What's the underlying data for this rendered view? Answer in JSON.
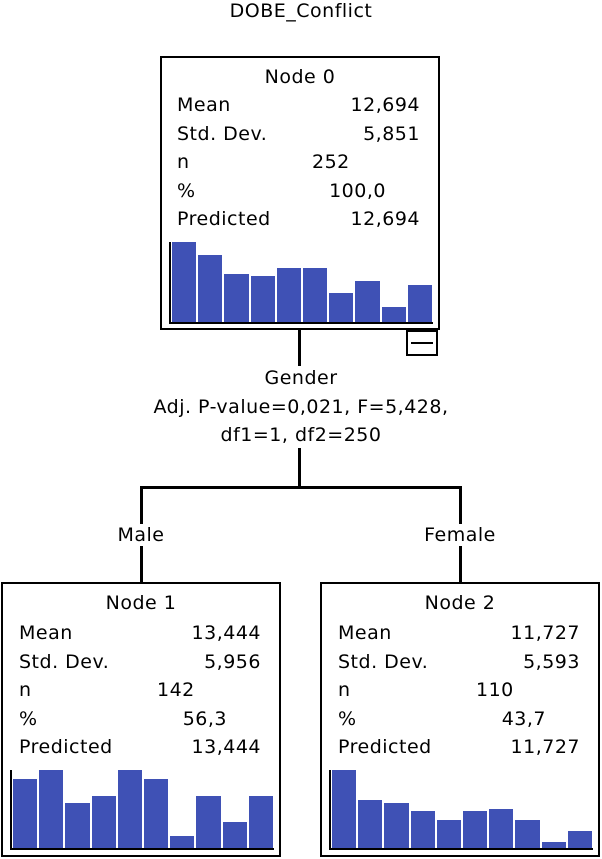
{
  "title": "DOBE_Conflict",
  "colors": {
    "bar": "#3f51b5",
    "line": "#000000"
  },
  "nodes": [
    {
      "title": "Node 0",
      "stats": [
        {
          "label": "Mean",
          "value": "12,694"
        },
        {
          "label": "Std. Dev.",
          "value": "5,851"
        },
        {
          "label": "n",
          "value": "252"
        },
        {
          "label": "%",
          "value": "100,0"
        },
        {
          "label": "Predicted",
          "value": "12,694"
        }
      ],
      "histogram": [
        1.0,
        0.84,
        0.6,
        0.57,
        0.68,
        0.68,
        0.36,
        0.51,
        0.19,
        0.46
      ]
    },
    {
      "title": "Node 1",
      "stats": [
        {
          "label": "Mean",
          "value": "13,444"
        },
        {
          "label": "Std. Dev.",
          "value": "5,956"
        },
        {
          "label": "n",
          "value": "142"
        },
        {
          "label": "%",
          "value": "56,3"
        },
        {
          "label": "Predicted",
          "value": "13,444"
        }
      ],
      "histogram": [
        0.88,
        1.0,
        0.58,
        0.67,
        1.0,
        0.88,
        0.15,
        0.67,
        0.33,
        0.67
      ]
    },
    {
      "title": "Node 2",
      "stats": [
        {
          "label": "Mean",
          "value": "11,727"
        },
        {
          "label": "Std. Dev.",
          "value": "5,593"
        },
        {
          "label": "n",
          "value": "110"
        },
        {
          "label": "%",
          "value": "43,7"
        },
        {
          "label": "Predicted",
          "value": "11,727"
        }
      ],
      "histogram": [
        1.0,
        0.61,
        0.58,
        0.47,
        0.36,
        0.47,
        0.5,
        0.36,
        0.08,
        0.22
      ]
    }
  ],
  "split": {
    "variable": "Gender",
    "stat_line1": "Adj. P-value=0,021, F=5,428,",
    "stat_line2": "df1=1, df2=250"
  },
  "branches": {
    "left": "Male",
    "right": "Female"
  }
}
